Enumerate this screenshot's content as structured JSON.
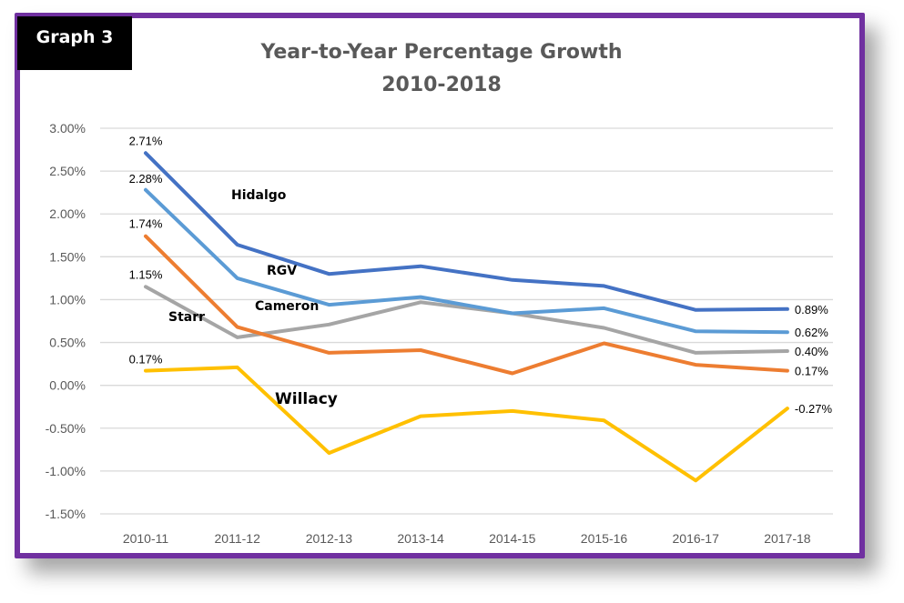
{
  "badge": "Graph 3",
  "chart_data": {
    "type": "line",
    "title": "Year-to-Year Percentage Growth",
    "subtitle": "2010-2018",
    "xlabel": "",
    "ylabel": "",
    "categories": [
      "2010-11",
      "2011-12",
      "2012-13",
      "2013-14",
      "2014-15",
      "2015-16",
      "2016-17",
      "2017-18"
    ],
    "ylim": [
      -1.5,
      3.0
    ],
    "yticks": [
      3.0,
      2.5,
      2.0,
      1.5,
      1.0,
      0.5,
      0.0,
      -0.5,
      -1.0,
      -1.5
    ],
    "ytick_labels": [
      "3.00%",
      "2.50%",
      "2.00%",
      "1.50%",
      "1.00%",
      "0.50%",
      "0.00%",
      "-0.50%",
      "-1.00%",
      "-1.50%"
    ],
    "grid": true,
    "legend": "none (inline series labels)",
    "series": [
      {
        "name": "Hidalgo",
        "color": "#4472c4",
        "values": [
          2.71,
          1.64,
          1.3,
          1.39,
          1.23,
          1.16,
          0.88,
          0.89
        ],
        "first_label": "2.71%",
        "last_label": "0.89%"
      },
      {
        "name": "RGV",
        "color": "#5b9bd5",
        "values": [
          2.28,
          1.25,
          0.94,
          1.03,
          0.84,
          0.9,
          0.63,
          0.62
        ],
        "first_label": "2.28%",
        "last_label": "0.62%"
      },
      {
        "name": "Cameron",
        "color": "#ed7d31",
        "values": [
          1.74,
          0.68,
          0.38,
          0.41,
          0.14,
          0.49,
          0.24,
          0.17
        ],
        "first_label": "1.74%",
        "last_label": "0.17%"
      },
      {
        "name": "Starr",
        "color": "#a5a5a5",
        "values": [
          1.15,
          0.56,
          0.71,
          0.97,
          0.84,
          0.67,
          0.38,
          0.4
        ],
        "first_label": "1.15%",
        "last_label": "0.40%"
      },
      {
        "name": "Willacy",
        "color": "#ffc000",
        "values": [
          0.17,
          0.21,
          -0.79,
          -0.36,
          -0.3,
          -0.41,
          -1.11,
          -0.27
        ],
        "first_label": "0.17%",
        "last_label": "-0.27%"
      }
    ]
  }
}
